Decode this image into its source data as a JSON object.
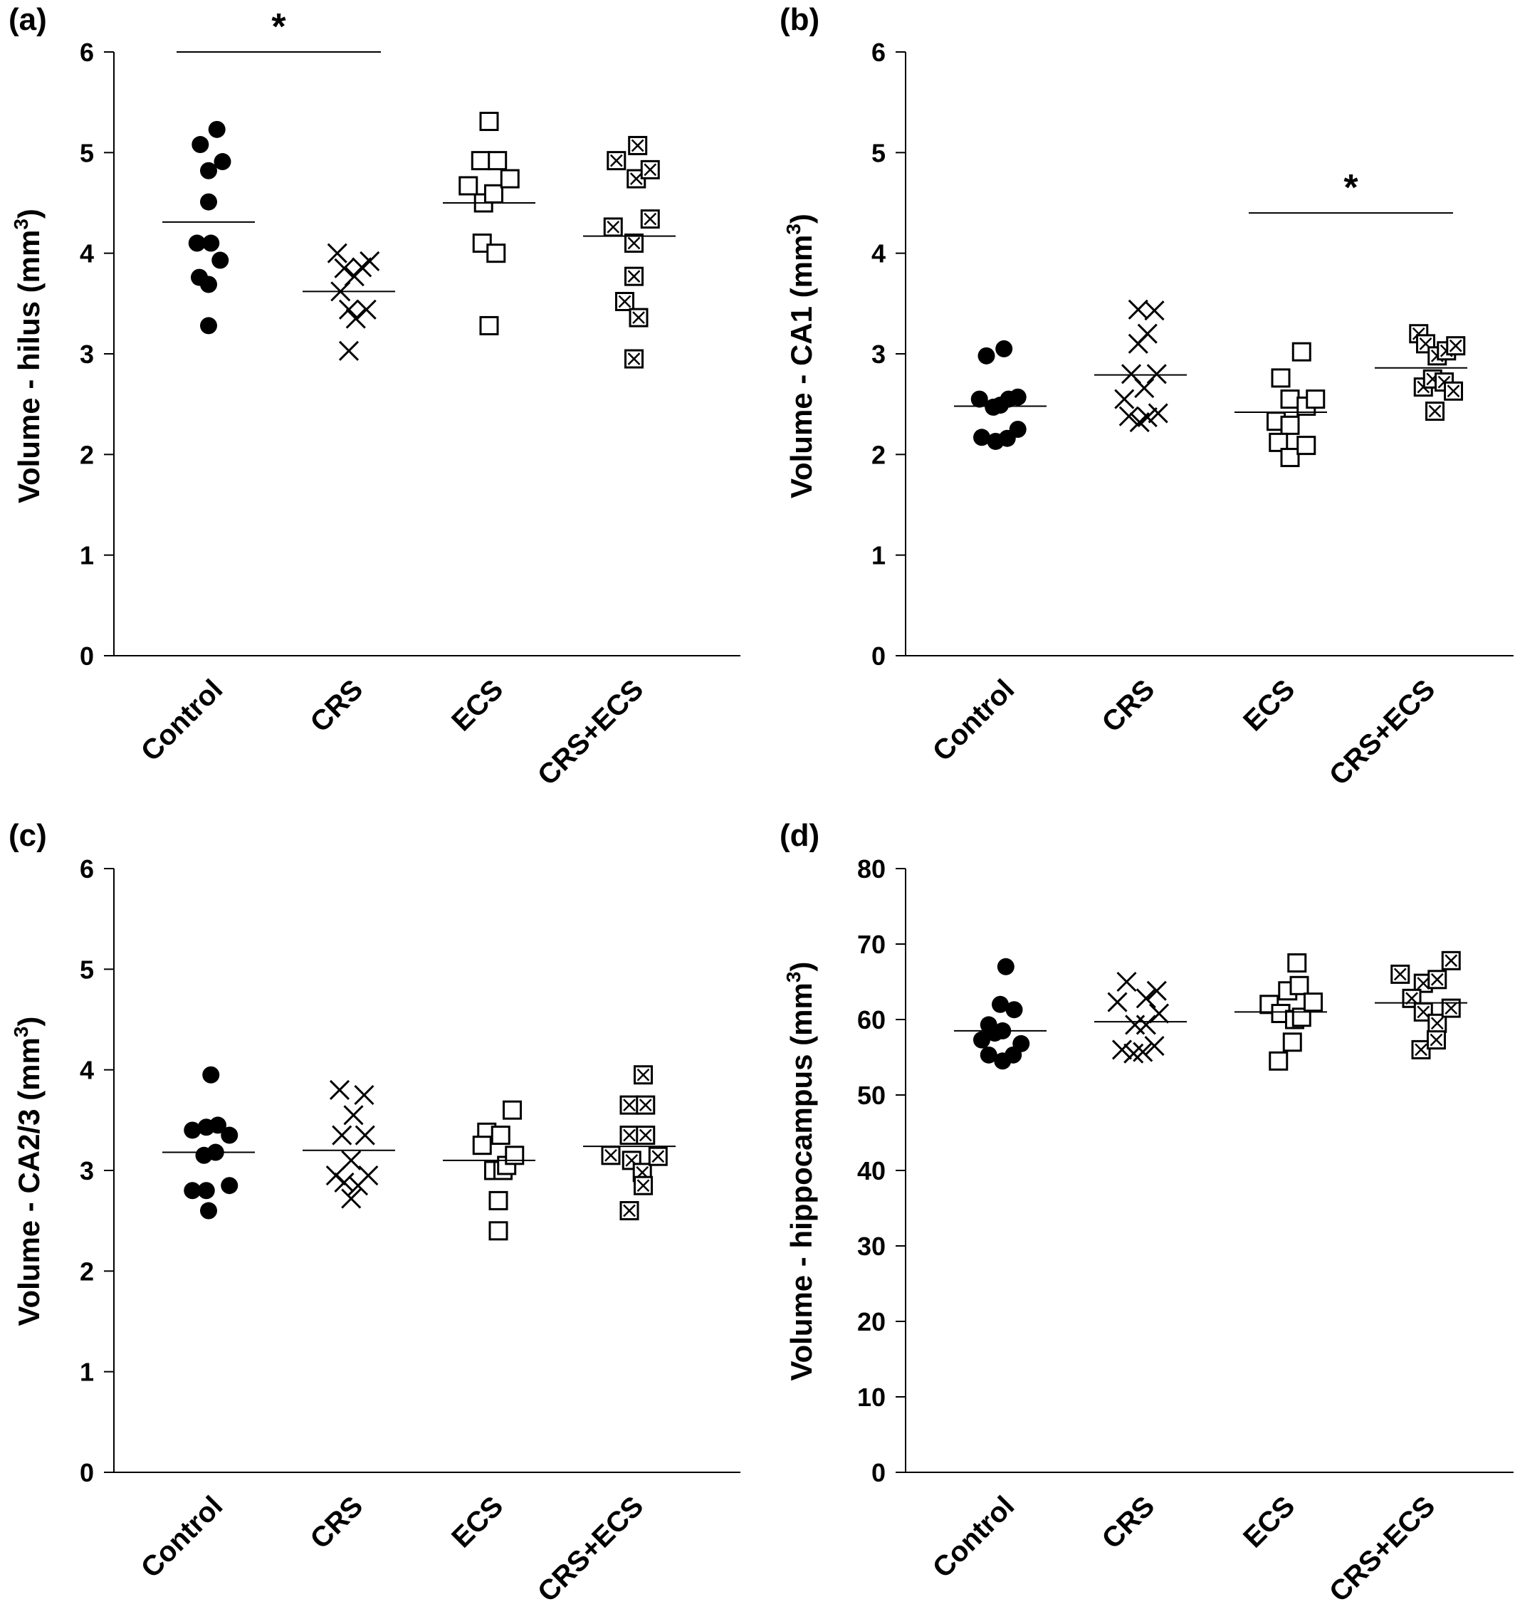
{
  "figure": {
    "panels": [
      "(a)",
      "(b)",
      "(c)",
      "(d)"
    ]
  },
  "chart_data": [
    {
      "type": "scatter",
      "panel": "(a)",
      "ylabel": "Volume - hilus (mm³)",
      "ylabel_main": "Volume - hilus (mm",
      "ylabel_sup": "3",
      "ylabel_end": ")",
      "ylim": [
        0,
        6
      ],
      "yticks": [
        0,
        1,
        2,
        3,
        4,
        5,
        6
      ],
      "categories": [
        "Control",
        "CRS",
        "ECS",
        "CRS+ECS"
      ],
      "markers": [
        "filled-circle",
        "x-cross",
        "open-square",
        "crossed-square"
      ],
      "series": [
        {
          "category": "Control",
          "mean": 4.31,
          "points": [
            [
              -0.18,
              5.08
            ],
            [
              0.18,
              5.23
            ],
            [
              0.0,
              4.82
            ],
            [
              0.3,
              4.91
            ],
            [
              0.0,
              4.51
            ],
            [
              -0.25,
              4.1
            ],
            [
              0.05,
              4.1
            ],
            [
              0.25,
              3.93
            ],
            [
              -0.2,
              3.76
            ],
            [
              0.0,
              3.69
            ],
            [
              0.0,
              3.28
            ]
          ]
        },
        {
          "category": "CRS",
          "mean": 3.62,
          "points": [
            [
              -0.25,
              4.0
            ],
            [
              -0.1,
              3.85
            ],
            [
              0.12,
              3.77
            ],
            [
              0.28,
              3.86
            ],
            [
              0.45,
              3.92
            ],
            [
              -0.18,
              3.62
            ],
            [
              0.0,
              3.44
            ],
            [
              0.15,
              3.35
            ],
            [
              0.38,
              3.44
            ],
            [
              0.0,
              3.03
            ]
          ]
        },
        {
          "category": "ECS",
          "mean": 4.5,
          "points": [
            [
              0.0,
              5.31
            ],
            [
              -0.18,
              4.92
            ],
            [
              0.18,
              4.92
            ],
            [
              -0.45,
              4.67
            ],
            [
              -0.12,
              4.5
            ],
            [
              0.1,
              4.59
            ],
            [
              0.45,
              4.74
            ],
            [
              -0.15,
              4.1
            ],
            [
              0.15,
              4.0
            ],
            [
              0.0,
              3.28
            ]
          ]
        },
        {
          "category": "CRS+ECS",
          "mean": 4.17,
          "points": [
            [
              0.18,
              5.07
            ],
            [
              -0.28,
              4.92
            ],
            [
              0.15,
              4.74
            ],
            [
              0.45,
              4.83
            ],
            [
              -0.35,
              4.26
            ],
            [
              0.1,
              4.1
            ],
            [
              0.45,
              4.34
            ],
            [
              0.1,
              3.77
            ],
            [
              -0.1,
              3.52
            ],
            [
              0.2,
              3.36
            ],
            [
              0.1,
              2.95
            ]
          ]
        }
      ],
      "significance": [
        {
          "from": "Control",
          "to": "CRS",
          "label": "*",
          "y": 6.0
        }
      ]
    },
    {
      "type": "scatter",
      "panel": "(b)",
      "ylabel": "Volume - CA1 (mm³)",
      "ylabel_main": "Volume - CA1 (mm",
      "ylabel_sup": "3",
      "ylabel_end": ")",
      "ylim": [
        0,
        6
      ],
      "yticks": [
        0,
        1,
        2,
        3,
        4,
        5,
        6
      ],
      "categories": [
        "Control",
        "CRS",
        "ECS",
        "CRS+ECS"
      ],
      "markers": [
        "filled-circle",
        "x-cross",
        "open-square",
        "crossed-square"
      ],
      "series": [
        {
          "category": "Control",
          "mean": 2.48,
          "points": [
            [
              -0.3,
              2.98
            ],
            [
              0.08,
              3.05
            ],
            [
              -0.45,
              2.55
            ],
            [
              -0.15,
              2.47
            ],
            [
              0.0,
              2.49
            ],
            [
              0.18,
              2.55
            ],
            [
              0.38,
              2.57
            ],
            [
              -0.4,
              2.17
            ],
            [
              -0.1,
              2.13
            ],
            [
              0.15,
              2.16
            ],
            [
              0.38,
              2.25
            ]
          ]
        },
        {
          "category": "CRS",
          "mean": 2.79,
          "points": [
            [
              -0.05,
              3.44
            ],
            [
              0.3,
              3.43
            ],
            [
              -0.05,
              3.1
            ],
            [
              0.15,
              3.2
            ],
            [
              -0.2,
              2.8
            ],
            [
              0.35,
              2.8
            ],
            [
              -0.35,
              2.55
            ],
            [
              0.08,
              2.66
            ],
            [
              -0.25,
              2.38
            ],
            [
              -0.02,
              2.32
            ],
            [
              0.15,
              2.37
            ],
            [
              0.38,
              2.41
            ]
          ]
        },
        {
          "category": "ECS",
          "mean": 2.42,
          "points": [
            [
              0.45,
              3.02
            ],
            [
              0.0,
              2.76
            ],
            [
              0.2,
              2.55
            ],
            [
              0.55,
              2.48
            ],
            [
              0.75,
              2.55
            ],
            [
              -0.1,
              2.33
            ],
            [
              0.2,
              2.29
            ],
            [
              -0.05,
              2.12
            ],
            [
              0.2,
              1.97
            ],
            [
              0.55,
              2.09
            ]
          ]
        },
        {
          "category": "CRS+ECS",
          "mean": 2.86,
          "points": [
            [
              -0.05,
              3.2
            ],
            [
              0.1,
              3.1
            ],
            [
              0.35,
              2.98
            ],
            [
              0.55,
              3.03
            ],
            [
              0.75,
              3.08
            ],
            [
              0.05,
              2.67
            ],
            [
              0.25,
              2.75
            ],
            [
              0.5,
              2.72
            ],
            [
              0.7,
              2.63
            ],
            [
              0.3,
              2.43
            ]
          ]
        }
      ],
      "significance": [
        {
          "from": "ECS",
          "to": "CRS+ECS",
          "label": "*",
          "y": 4.4
        }
      ]
    },
    {
      "type": "scatter",
      "panel": "(c)",
      "ylabel": "Volume - CA2/3 (mm³)",
      "ylabel_main": "Volume - CA2/3 (mm",
      "ylabel_sup": "3",
      "ylabel_end": ")",
      "ylim": [
        0,
        6
      ],
      "yticks": [
        0,
        1,
        2,
        3,
        4,
        5,
        6
      ],
      "categories": [
        "Control",
        "CRS",
        "ECS",
        "CRS+ECS"
      ],
      "markers": [
        "filled-circle",
        "x-cross",
        "open-square",
        "crossed-square"
      ],
      "series": [
        {
          "category": "Control",
          "mean": 3.18,
          "points": [
            [
              0.05,
              3.95
            ],
            [
              -0.35,
              3.4
            ],
            [
              -0.05,
              3.43
            ],
            [
              0.2,
              3.45
            ],
            [
              0.45,
              3.35
            ],
            [
              -0.1,
              3.15
            ],
            [
              0.15,
              3.18
            ],
            [
              -0.35,
              2.8
            ],
            [
              -0.05,
              2.8
            ],
            [
              0.45,
              2.85
            ],
            [
              0.0,
              2.6
            ]
          ]
        },
        {
          "category": "CRS",
          "mean": 3.2,
          "points": [
            [
              -0.2,
              3.8
            ],
            [
              0.33,
              3.75
            ],
            [
              0.1,
              3.55
            ],
            [
              -0.15,
              3.35
            ],
            [
              0.35,
              3.35
            ],
            [
              0.05,
              3.1
            ],
            [
              -0.28,
              2.95
            ],
            [
              -0.1,
              2.88
            ],
            [
              0.2,
              2.85
            ],
            [
              0.42,
              2.95
            ],
            [
              0.05,
              2.72
            ]
          ]
        },
        {
          "category": "ECS",
          "mean": 3.1,
          "points": [
            [
              0.5,
              3.6
            ],
            [
              -0.05,
              3.38
            ],
            [
              0.25,
              3.35
            ],
            [
              -0.15,
              3.25
            ],
            [
              0.1,
              3.0
            ],
            [
              0.3,
              3.0
            ],
            [
              0.38,
              3.05
            ],
            [
              0.55,
              3.15
            ],
            [
              0.2,
              2.7
            ],
            [
              0.2,
              2.4
            ]
          ]
        },
        {
          "category": "CRS+ECS",
          "mean": 3.24,
          "points": [
            [
              0.3,
              3.95
            ],
            [
              0.0,
              3.65
            ],
            [
              0.35,
              3.65
            ],
            [
              0.0,
              3.35
            ],
            [
              0.35,
              3.35
            ],
            [
              -0.4,
              3.15
            ],
            [
              0.05,
              3.1
            ],
            [
              0.28,
              2.98
            ],
            [
              0.62,
              3.14
            ],
            [
              0.3,
              2.85
            ],
            [
              0.0,
              2.6
            ]
          ]
        }
      ],
      "significance": []
    },
    {
      "type": "scatter",
      "panel": "(d)",
      "ylabel": "Volume - hippocampus (mm³)",
      "ylabel_main": "Volume - hippocampus (mm",
      "ylabel_sup": "3",
      "ylabel_end": ")",
      "ylim": [
        0,
        80
      ],
      "yticks": [
        0,
        10,
        20,
        30,
        40,
        50,
        60,
        70,
        80
      ],
      "categories": [
        "Control",
        "CRS",
        "ECS",
        "CRS+ECS"
      ],
      "markers": [
        "filled-circle",
        "x-cross",
        "open-square",
        "crossed-square"
      ],
      "series": [
        {
          "category": "Control",
          "mean": 58.5,
          "points": [
            [
              0.12,
              67.0
            ],
            [
              -0.25,
              59.3
            ],
            [
              0.0,
              62.0
            ],
            [
              0.3,
              61.3
            ],
            [
              -0.4,
              57.3
            ],
            [
              -0.12,
              58.2
            ],
            [
              0.05,
              58.5
            ],
            [
              0.45,
              56.8
            ],
            [
              -0.25,
              55.3
            ],
            [
              0.05,
              54.5
            ],
            [
              0.28,
              55.3
            ]
          ]
        },
        {
          "category": "CRS",
          "mean": 59.7,
          "points": [
            [
              -0.3,
              65.0
            ],
            [
              -0.5,
              62.3
            ],
            [
              0.12,
              62.8
            ],
            [
              0.35,
              63.8
            ],
            [
              -0.12,
              59.3
            ],
            [
              0.12,
              59.3
            ],
            [
              0.4,
              60.8
            ],
            [
              -0.4,
              56.0
            ],
            [
              -0.15,
              55.5
            ],
            [
              0.05,
              55.7
            ],
            [
              0.3,
              56.5
            ]
          ]
        },
        {
          "category": "ECS",
          "mean": 61.0,
          "points": [
            [
              0.35,
              67.5
            ],
            [
              0.15,
              63.8
            ],
            [
              0.4,
              64.5
            ],
            [
              -0.25,
              62.0
            ],
            [
              0.0,
              60.8
            ],
            [
              0.3,
              60.0
            ],
            [
              0.45,
              60.3
            ],
            [
              0.7,
              62.3
            ],
            [
              0.25,
              57.0
            ],
            [
              -0.05,
              54.5
            ]
          ]
        },
        {
          "category": "CRS+ECS",
          "mean": 62.2,
          "points": [
            [
              -0.45,
              66.0
            ],
            [
              0.65,
              67.8
            ],
            [
              0.05,
              64.8
            ],
            [
              0.35,
              65.3
            ],
            [
              -0.2,
              62.8
            ],
            [
              0.05,
              61.0
            ],
            [
              0.35,
              59.5
            ],
            [
              0.65,
              61.5
            ],
            [
              0.0,
              56.0
            ],
            [
              0.33,
              57.3
            ]
          ]
        }
      ],
      "significance": []
    }
  ]
}
